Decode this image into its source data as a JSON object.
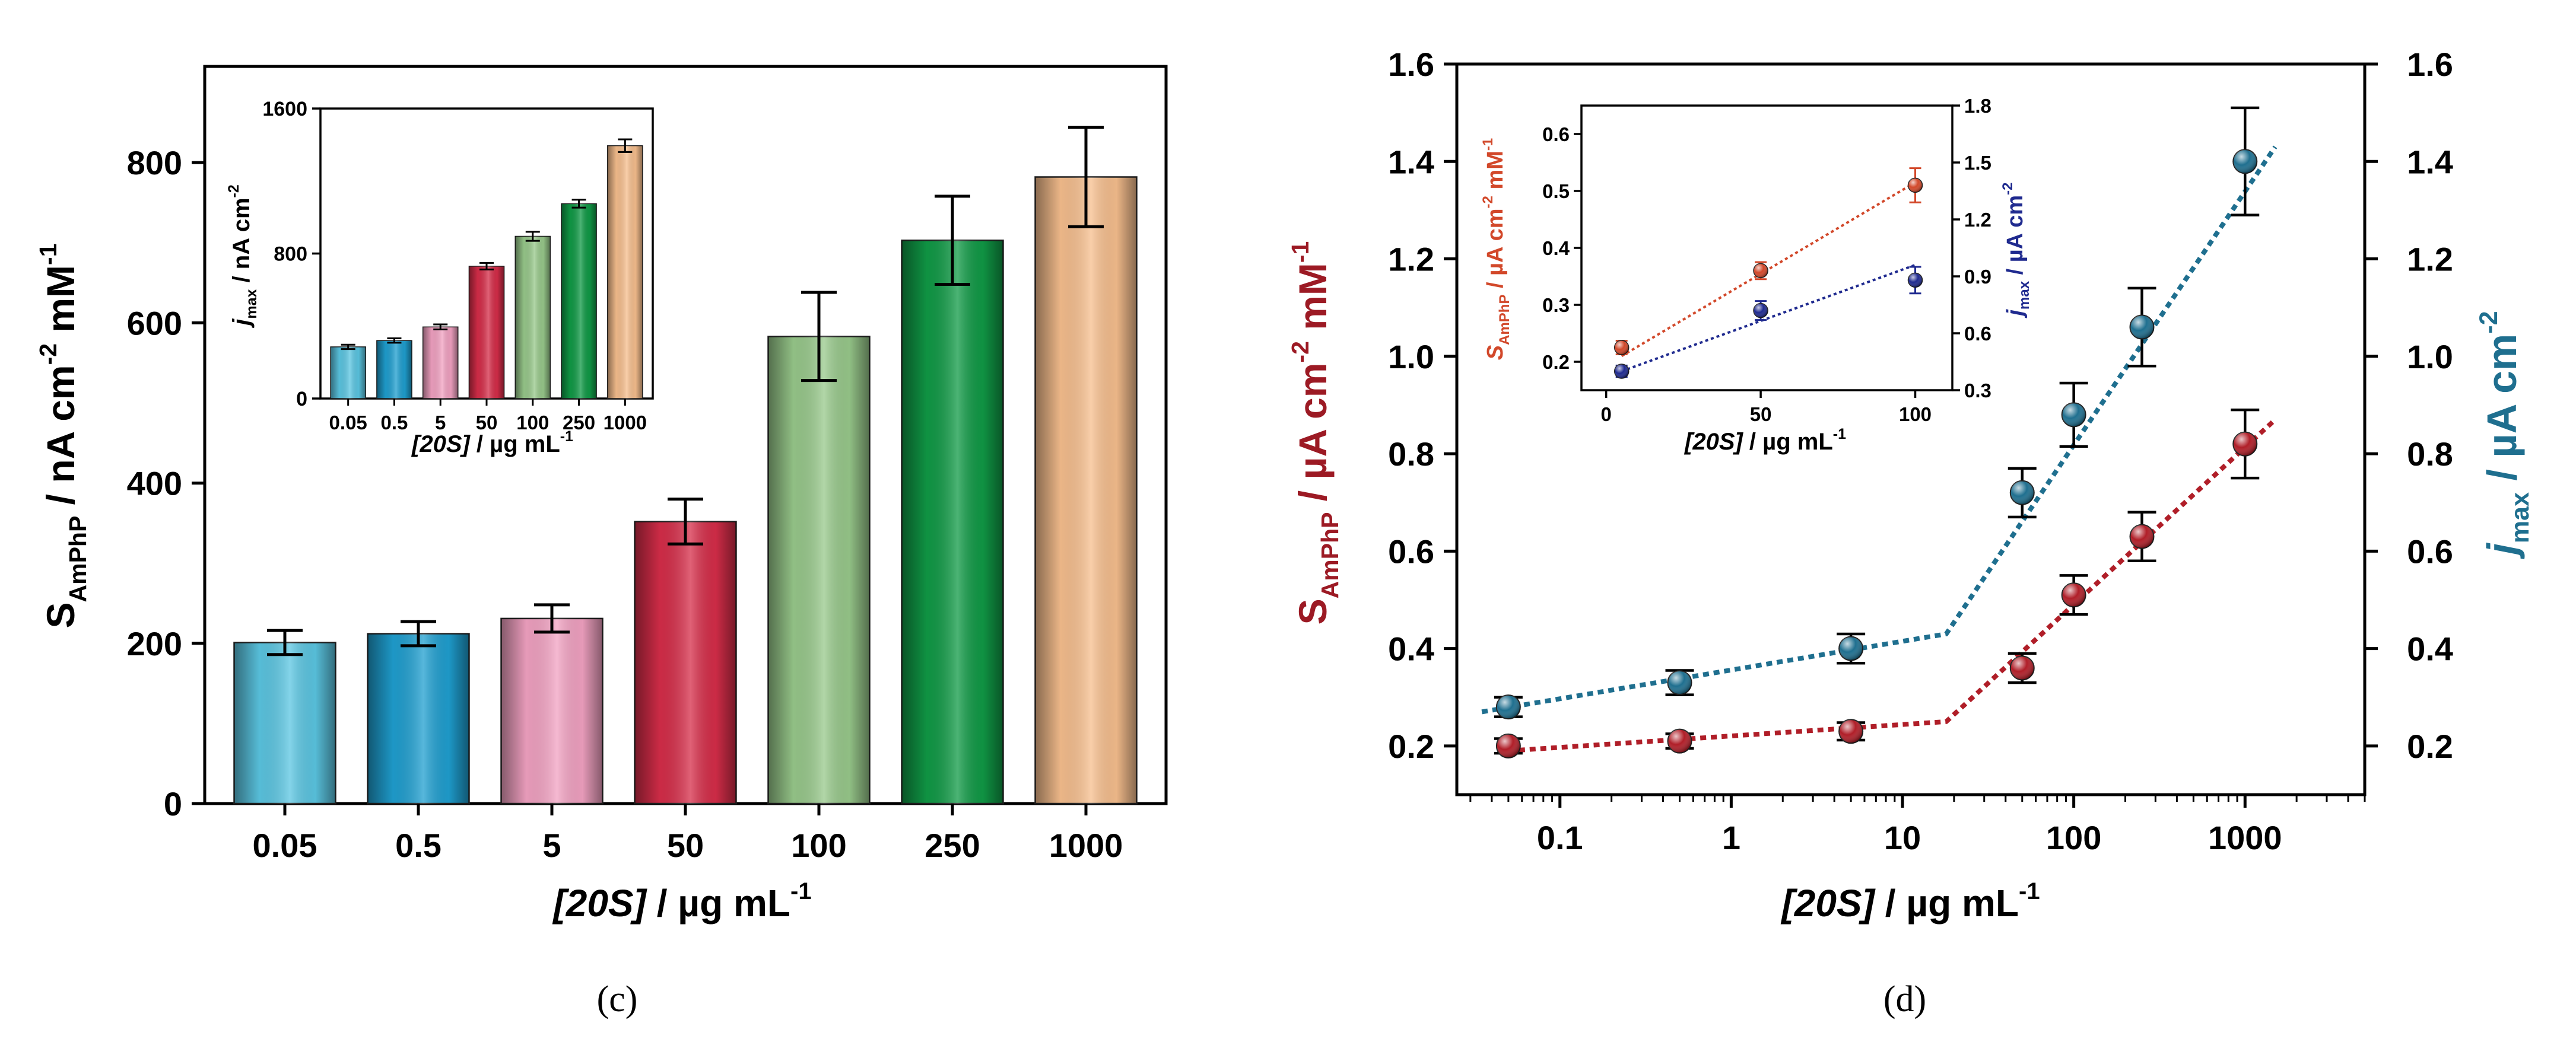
{
  "panel_c_caption": "(c)",
  "panel_d_caption": "(d)",
  "chart_data": [
    {
      "id": "c-main",
      "type": "bar",
      "categories": [
        "0.05",
        "0.5",
        "5",
        "50",
        "100",
        "250",
        "1000"
      ],
      "values": [
        201,
        212,
        231,
        352,
        583,
        703,
        782
      ],
      "errors": [
        15,
        15,
        17,
        28,
        55,
        55,
        62
      ],
      "colors": [
        "#5bc6e2",
        "#1f9fd0",
        "#f2a2c2",
        "#d62d49",
        "#98c98b",
        "#109a46",
        "#f7bf8e"
      ],
      "ylim": [
        0,
        920
      ],
      "yticks": [
        0,
        200,
        400,
        600,
        800
      ],
      "ylabel_parts": [
        "S",
        "AmPhP",
        " / nA cm",
        "-2",
        " mM",
        "-1"
      ],
      "xlabel_parts": [
        "[20S]",
        " / µg mL",
        "-1"
      ]
    },
    {
      "id": "c-inset",
      "type": "bar",
      "categories": [
        "0.05",
        "0.5",
        "5",
        "50",
        "100",
        "250",
        "1000"
      ],
      "values": [
        285,
        320,
        395,
        730,
        895,
        1075,
        1395
      ],
      "errors": [
        12,
        12,
        14,
        18,
        25,
        22,
        35
      ],
      "ylim": [
        0,
        1600
      ],
      "yticks": [
        0,
        800,
        1600
      ],
      "ylabel_parts": [
        "j",
        "max",
        " / nA cm",
        "-2"
      ],
      "xlabel_parts": [
        "[20S]",
        " / µg mL",
        "-1"
      ]
    },
    {
      "id": "d-main",
      "type": "scatter",
      "xscale": "log",
      "xlim": [
        0.025,
        5000
      ],
      "xticks": [
        "0.1",
        "1",
        "10",
        "100",
        "1000"
      ],
      "ylim": [
        0.1,
        1.6
      ],
      "yticks": [
        "0.2",
        "0.4",
        "0.6",
        "0.8",
        "1.0",
        "1.2",
        "1.4",
        "1.6"
      ],
      "ylabel_parts": [
        "S",
        "AmPhP",
        " / µA cm",
        "-2",
        " mM",
        "-1"
      ],
      "y2label_parts": [
        "j",
        "max",
        " / µA cm",
        "-2"
      ],
      "xlabel_parts": [
        "[20S]",
        " / µg mL",
        "-1"
      ],
      "series": [
        {
          "name": "S_AmPhP",
          "color": "#b01e28",
          "x": [
            0.05,
            0.5,
            5,
            50,
            100,
            250,
            1000
          ],
          "y": [
            0.2,
            0.21,
            0.23,
            0.36,
            0.51,
            0.63,
            0.82
          ],
          "err": [
            0.015,
            0.015,
            0.018,
            0.03,
            0.04,
            0.05,
            0.07
          ],
          "fit": [
            [
              0.05,
              0.19
            ],
            [
              18,
              0.25
            ],
            [
              1500,
              0.87
            ]
          ]
        },
        {
          "name": "j_max",
          "color": "#1f6f8f",
          "x": [
            0.05,
            0.5,
            5,
            50,
            100,
            250,
            1000
          ],
          "y": [
            0.28,
            0.33,
            0.4,
            0.72,
            0.88,
            1.06,
            1.4
          ],
          "err": [
            0.02,
            0.025,
            0.03,
            0.05,
            0.065,
            0.08,
            0.11
          ],
          "fit": [
            [
              0.035,
              0.27
            ],
            [
              18,
              0.43
            ],
            [
              1500,
              1.43
            ]
          ]
        }
      ]
    },
    {
      "id": "d-inset",
      "type": "scatter",
      "xlim": [
        -8,
        112
      ],
      "xticks": [
        "0",
        "50",
        "100"
      ],
      "ylim": [
        0.15,
        0.65
      ],
      "yticks": [
        "0.2",
        "0.3",
        "0.4",
        "0.5",
        "0.6"
      ],
      "y2lim": [
        0.3,
        1.8
      ],
      "y2ticks": [
        "0.3",
        "0.6",
        "0.9",
        "1.2",
        "1.5",
        "1.8"
      ],
      "ylabel_parts": [
        "S",
        "AmPhP",
        " / µA cm",
        "-2",
        " mM",
        "-1"
      ],
      "y2label_parts": [
        "j",
        "max",
        " / µA cm",
        "-2"
      ],
      "xlabel_parts": [
        "[20S]",
        " / µg mL",
        "-1"
      ],
      "series": [
        {
          "name": "S_AmPhP",
          "color": "#d2482a",
          "axis": "left",
          "x": [
            5,
            50,
            100
          ],
          "y": [
            0.225,
            0.36,
            0.51
          ],
          "err": [
            0.012,
            0.015,
            0.03
          ],
          "fit": [
            [
              5,
              0.21
            ],
            [
              100,
              0.515
            ]
          ]
        },
        {
          "name": "j_max",
          "color": "#1f2a8f",
          "axis": "right",
          "x": [
            5,
            50,
            100
          ],
          "y": [
            0.4,
            0.72,
            0.88
          ],
          "err": [
            0.03,
            0.05,
            0.07
          ],
          "fit": [
            [
              5,
              0.4
            ],
            [
              100,
              0.96
            ]
          ]
        }
      ]
    }
  ]
}
